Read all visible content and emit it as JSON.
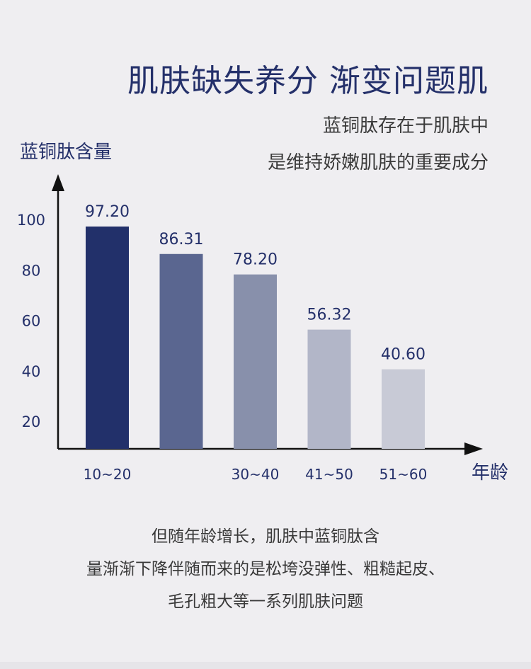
{
  "header": {
    "title": "肌肤缺失养分 渐变问题肌",
    "subtitle_lines": [
      "蓝铜肽存在于肌肤中",
      "是维持娇嫩肌肤的重要成分"
    ]
  },
  "footer": {
    "lines": [
      "但随年龄增长，肌肤中蓝铜肽含",
      "量渐渐下降伴随而来的是松垮没弹性、粗糙起皮、",
      "毛孔粗大等一系列肌肤问题"
    ]
  },
  "chart_data": {
    "type": "bar",
    "ylabel": "蓝铜肽含量",
    "xlabel": "年龄",
    "categories": [
      "10~20",
      "",
      "30~40",
      "41~50",
      "51~60"
    ],
    "values": [
      97.2,
      86.31,
      78.2,
      56.32,
      40.6
    ],
    "value_labels": [
      "97.20",
      "86.31",
      "78.20",
      "56.32",
      "40.60"
    ],
    "bar_colors": [
      "#22306a",
      "#5a6690",
      "#8890ab",
      "#b2b6c8",
      "#c8cad6"
    ],
    "y_ticks": [
      20,
      40,
      60,
      80,
      100
    ],
    "ylim": [
      10,
      100
    ],
    "axis_color": "#111111",
    "label_color": "#24306a"
  }
}
